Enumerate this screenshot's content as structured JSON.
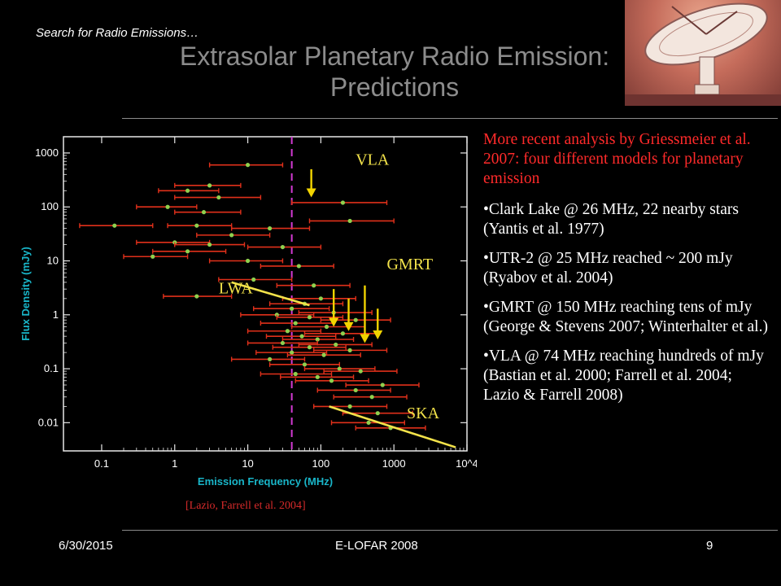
{
  "header": {
    "top_label": "Search for Radio Emissions…",
    "title_line1": "Extrasolar Planetary Radio Emission:",
    "title_line2": "Predictions"
  },
  "chart_data": {
    "type": "scatter",
    "xlabel": "Emission Frequency (MHz)",
    "ylabel": "Flux Density (mJy)",
    "xscale": "log",
    "yscale": "log",
    "xlim": [
      0.03,
      10000
    ],
    "ylim": [
      0.003,
      2000
    ],
    "x_ticks": [
      "0.1",
      "1",
      "10",
      "100",
      "1000",
      "10^4"
    ],
    "y_ticks": [
      "0.01",
      "0.1",
      "1",
      "10",
      "100",
      "1000"
    ],
    "vline_x": 40,
    "colors": {
      "axes": "#19b6c9",
      "points": "#8fd14f",
      "errbars": "#e0301a",
      "vline": "#d23ad2",
      "labels": "#f2e24a",
      "arrows": "#f2d400",
      "lines": "#f2e24a"
    },
    "instrument_labels": [
      {
        "text": "VLA",
        "x": 300,
        "y": 600
      },
      {
        "text": "GMRT",
        "x": 800,
        "y": 7
      },
      {
        "text": "LWA",
        "x": 4,
        "y": 2.5
      },
      {
        "text": "SKA",
        "x": 1500,
        "y": 0.012
      }
    ],
    "sensitivity_lines": [
      {
        "name": "LWA",
        "from": [
          6,
          4
        ],
        "to": [
          70,
          1.5
        ]
      },
      {
        "name": "SKA",
        "from": [
          130,
          0.02
        ],
        "to": [
          7000,
          0.0035
        ]
      }
    ],
    "arrows": [
      {
        "x": 74,
        "from": 500,
        "to": 150
      },
      {
        "x": 150,
        "from": 3,
        "to": 0.6
      },
      {
        "x": 240,
        "from": 2,
        "to": 0.5
      },
      {
        "x": 400,
        "from": 3.5,
        "to": 0.3
      },
      {
        "x": 600,
        "from": 1.3,
        "to": 0.35
      }
    ],
    "series": [
      {
        "points": [
          {
            "x": 10,
            "y": 600,
            "lo": 3,
            "hi": 30
          },
          {
            "x": 3,
            "y": 250,
            "lo": 1,
            "hi": 8
          },
          {
            "x": 1.5,
            "y": 200,
            "lo": 0.6,
            "hi": 4
          },
          {
            "x": 4,
            "y": 150,
            "lo": 1,
            "hi": 15
          },
          {
            "x": 200,
            "y": 120,
            "lo": 40,
            "hi": 800
          },
          {
            "x": 0.8,
            "y": 100,
            "lo": 0.3,
            "hi": 2
          },
          {
            "x": 2.5,
            "y": 80,
            "lo": 1,
            "hi": 8
          },
          {
            "x": 250,
            "y": 55,
            "lo": 70,
            "hi": 1000
          },
          {
            "x": 0.15,
            "y": 45,
            "lo": 0.05,
            "hi": 0.5
          },
          {
            "x": 2,
            "y": 45,
            "lo": 0.8,
            "hi": 6
          },
          {
            "x": 20,
            "y": 40,
            "lo": 6,
            "hi": 70
          },
          {
            "x": 6,
            "y": 30,
            "lo": 2,
            "hi": 20
          },
          {
            "x": 1,
            "y": 22,
            "lo": 0.3,
            "hi": 3
          },
          {
            "x": 3,
            "y": 20,
            "lo": 1,
            "hi": 9
          },
          {
            "x": 30,
            "y": 18,
            "lo": 10,
            "hi": 100
          },
          {
            "x": 1.5,
            "y": 15,
            "lo": 0.5,
            "hi": 5
          },
          {
            "x": 0.5,
            "y": 12,
            "lo": 0.2,
            "hi": 1.5
          },
          {
            "x": 10,
            "y": 10,
            "lo": 3,
            "hi": 30
          },
          {
            "x": 50,
            "y": 8,
            "lo": 15,
            "hi": 150
          },
          {
            "x": 12,
            "y": 4.5,
            "lo": 4,
            "hi": 40
          },
          {
            "x": 80,
            "y": 3.5,
            "lo": 25,
            "hi": 250
          },
          {
            "x": 2,
            "y": 2.2,
            "lo": 0.7,
            "hi": 6
          },
          {
            "x": 100,
            "y": 2,
            "lo": 30,
            "hi": 300
          },
          {
            "x": 60,
            "y": 1.6,
            "lo": 20,
            "hi": 200
          },
          {
            "x": 40,
            "y": 1.3,
            "lo": 12,
            "hi": 130
          },
          {
            "x": 150,
            "y": 1.1,
            "lo": 50,
            "hi": 500
          },
          {
            "x": 25,
            "y": 1.0,
            "lo": 8,
            "hi": 80
          },
          {
            "x": 70,
            "y": 0.9,
            "lo": 25,
            "hi": 200
          },
          {
            "x": 300,
            "y": 0.8,
            "lo": 100,
            "hi": 900
          },
          {
            "x": 45,
            "y": 0.7,
            "lo": 15,
            "hi": 150
          },
          {
            "x": 120,
            "y": 0.6,
            "lo": 40,
            "hi": 400
          },
          {
            "x": 35,
            "y": 0.5,
            "lo": 10,
            "hi": 100
          },
          {
            "x": 200,
            "y": 0.45,
            "lo": 60,
            "hi": 600
          },
          {
            "x": 55,
            "y": 0.4,
            "lo": 18,
            "hi": 160
          },
          {
            "x": 90,
            "y": 0.35,
            "lo": 30,
            "hi": 280
          },
          {
            "x": 30,
            "y": 0.3,
            "lo": 10,
            "hi": 90
          },
          {
            "x": 160,
            "y": 0.28,
            "lo": 50,
            "hi": 500
          },
          {
            "x": 70,
            "y": 0.25,
            "lo": 22,
            "hi": 220
          },
          {
            "x": 250,
            "y": 0.22,
            "lo": 80,
            "hi": 800
          },
          {
            "x": 40,
            "y": 0.2,
            "lo": 13,
            "hi": 120
          },
          {
            "x": 110,
            "y": 0.18,
            "lo": 35,
            "hi": 350
          },
          {
            "x": 20,
            "y": 0.15,
            "lo": 6,
            "hi": 60
          },
          {
            "x": 60,
            "y": 0.12,
            "lo": 20,
            "hi": 180
          },
          {
            "x": 180,
            "y": 0.1,
            "lo": 60,
            "hi": 550
          },
          {
            "x": 350,
            "y": 0.09,
            "lo": 110,
            "hi": 1100
          },
          {
            "x": 45,
            "y": 0.08,
            "lo": 15,
            "hi": 140
          },
          {
            "x": 90,
            "y": 0.07,
            "lo": 28,
            "hi": 280
          },
          {
            "x": 140,
            "y": 0.06,
            "lo": 45,
            "hi": 450
          },
          {
            "x": 700,
            "y": 0.05,
            "lo": 220,
            "hi": 2200
          },
          {
            "x": 300,
            "y": 0.04,
            "lo": 90,
            "hi": 900
          },
          {
            "x": 500,
            "y": 0.03,
            "lo": 150,
            "hi": 1500
          },
          {
            "x": 250,
            "y": 0.02,
            "lo": 80,
            "hi": 800
          },
          {
            "x": 600,
            "y": 0.015,
            "lo": 200,
            "hi": 1800
          },
          {
            "x": 450,
            "y": 0.01,
            "lo": 140,
            "hi": 1400
          },
          {
            "x": 900,
            "y": 0.008,
            "lo": 300,
            "hi": 2700
          }
        ]
      }
    ]
  },
  "caption": "[Lazio, Farrell et al. 2004]",
  "body": {
    "intro": "More recent analysis by Griessmeier et al. 2007: four different models for planetary emission",
    "bullets": [
      "•Clark Lake @ 26 MHz, 22 nearby stars (Yantis et al. 1977)",
      "•UTR-2 @ 25 MHz reached ~ 200 mJy (Ryabov et al. 2004)",
      "•GMRT @ 150 MHz reaching tens of mJy (George & Stevens 2007; Winterhalter et al.)",
      "•VLA @ 74 MHz reaching hundreds of mJy (Bastian et al. 2000; Farrell et al. 2004; Lazio & Farrell 2008)"
    ]
  },
  "footer": {
    "date": "6/30/2015",
    "event": "E-LOFAR 2008",
    "page": "9"
  }
}
